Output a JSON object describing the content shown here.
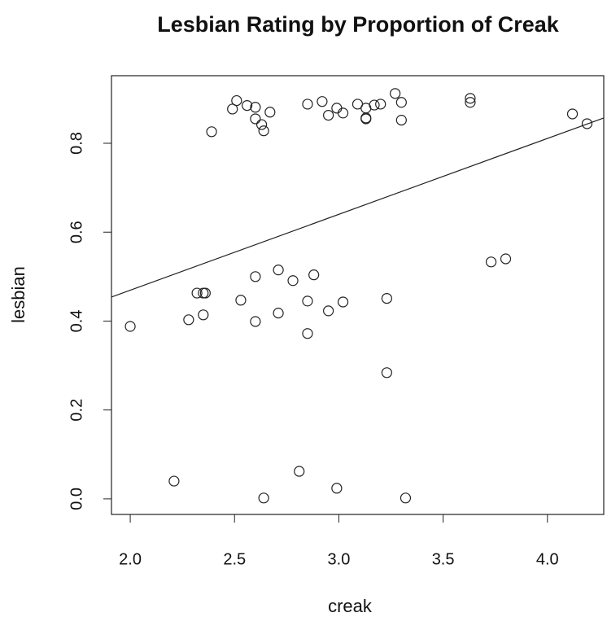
{
  "chart_data": {
    "type": "scatter",
    "title": "Lesbian Rating by Proportion of Creak",
    "xlabel": "creak",
    "ylabel": "lesbian",
    "xlim": [
      1.91,
      4.27
    ],
    "ylim": [
      -0.035,
      0.952
    ],
    "xticks": [
      {
        "value": 2,
        "label": "2.0"
      },
      2.5,
      {
        "value": 3,
        "label": "3.0"
      },
      3.5,
      {
        "value": 4,
        "label": "4.0"
      }
    ],
    "yticks": [
      {
        "value": 0,
        "label": "0.0"
      },
      0.2,
      0.4,
      0.6,
      0.8
    ],
    "color": "#222222",
    "x": [
      2.0,
      2.21,
      2.28,
      2.32,
      2.35,
      2.36,
      2.35,
      2.39,
      2.49,
      2.51,
      2.56,
      2.6,
      2.6,
      2.63,
      2.64,
      2.67,
      2.53,
      2.6,
      2.6,
      2.64,
      2.71,
      2.71,
      2.78,
      2.81,
      2.85,
      2.85,
      2.85,
      2.88,
      2.92,
      2.95,
      2.95,
      2.99,
      2.99,
      3.02,
      3.02,
      3.09,
      3.13,
      3.13,
      3.17,
      3.2,
      3.13,
      3.23,
      3.23,
      3.27,
      3.3,
      3.3,
      3.32,
      3.63,
      3.63,
      3.73,
      3.8,
      4.12,
      4.19
    ],
    "values": [
      0.388,
      0.04,
      0.403,
      0.463,
      0.463,
      0.463,
      0.414,
      0.826,
      0.877,
      0.896,
      0.885,
      0.881,
      0.855,
      0.842,
      0.828,
      0.87,
      0.447,
      0.5,
      0.399,
      0.002,
      0.515,
      0.418,
      0.491,
      0.062,
      0.888,
      0.445,
      0.372,
      0.504,
      0.894,
      0.863,
      0.423,
      0.879,
      0.024,
      0.443,
      0.868,
      0.888,
      0.855,
      0.857,
      0.886,
      0.888,
      0.879,
      0.451,
      0.284,
      0.912,
      0.892,
      0.852,
      0.002,
      0.901,
      0.892,
      0.533,
      0.54,
      0.866,
      0.844
    ],
    "regression_line": {
      "x": [
        1.91,
        4.27
      ],
      "y": [
        0.454,
        0.857
      ]
    }
  }
}
